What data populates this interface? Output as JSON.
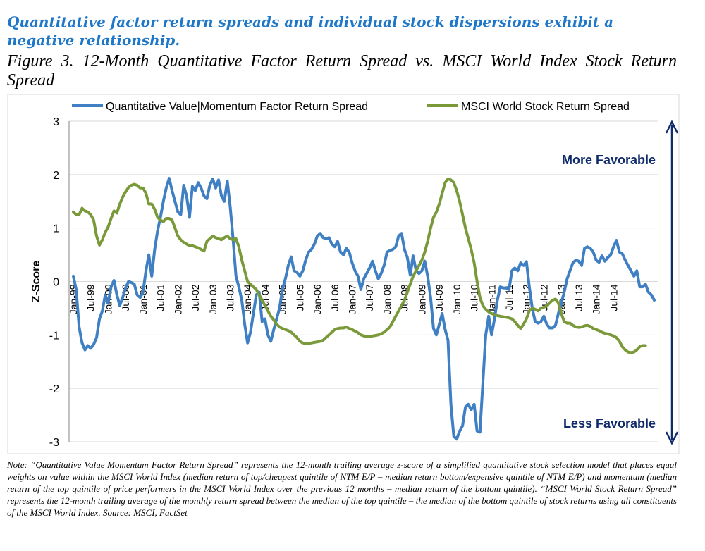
{
  "headline": "Quantitative factor return spreads and individual stock dispersions exhibit a negative relationship.",
  "figure_title": "Figure 3. 12-Month Quantitative Factor Return Spread vs. MSCI World Index Stock Return Spread",
  "note": "Note: “Quantitative Value|Momentum Factor Return Spread” represents the 12-month trailing average z-score of a simplified quantitative stock selection model that places equal weights on value within the MSCI World Index (median return of top/cheapest quintile of NTM E/P – median return bottom/expensive quintile of NTM E/P) and momentum (median return of the top quintile of price performers in the MSCI World Index over the previous 12 months – median return of the bottom quintile).  “MSCI World Stock Return Spread” represents the 12-month trailing average of the monthly return spread between the median of the top quintile – the median of the bottom quintile of stock returns using all constituents of the MSCI World Index. Source: MSCI, FactSet",
  "colors": {
    "series1": "#3f7fc3",
    "series2": "#7a9a3a",
    "arrow": "#0f2b6b",
    "grid": "#d9d9d9",
    "headline": "#1f77c8"
  },
  "chart_data": {
    "type": "line",
    "title": "",
    "xlabel": "",
    "ylabel": "Z-Score",
    "ylim": [
      -3,
      3
    ],
    "y_ticks": [
      3,
      2,
      1,
      0,
      -1,
      -2,
      -3
    ],
    "grid": true,
    "legend_position": "top",
    "x_start": "Jan-99",
    "x_frequency": "monthly",
    "x_tick_labels": [
      "Jan-99",
      "Jul-99",
      "Jan-00",
      "Jul-00",
      "Jan-01",
      "Jul-01",
      "Jan-02",
      "Jul-02",
      "Jan-03",
      "Jul-03",
      "Jan-04",
      "Jul-04",
      "Jan-05",
      "Jul-05",
      "Jan-06",
      "Jul-06",
      "Jan-07",
      "Jul-07",
      "Jan-08",
      "Jul-08",
      "Jan-09",
      "Jul-09",
      "Jan-10",
      "Jul-10",
      "Jan-11",
      "Jul-11",
      "Jan-12",
      "Jul-12",
      "Jan-13",
      "Jul-13",
      "Jan-14",
      "Jul-14"
    ],
    "annotations": {
      "top": "More Favorable",
      "bottom": "Less Favorable"
    },
    "series": [
      {
        "name": "Quantitative Value|Momentum Factor Return Spread",
        "values": [
          0.1,
          -0.15,
          -0.85,
          -1.15,
          -1.28,
          -1.2,
          -1.25,
          -1.18,
          -1.05,
          -0.7,
          -0.55,
          -0.25,
          -0.4,
          -0.1,
          0.02,
          -0.25,
          -0.45,
          -0.3,
          -0.12,
          0.0,
          -0.02,
          -0.05,
          -0.25,
          -0.3,
          -0.2,
          0.2,
          0.5,
          0.1,
          0.6,
          0.95,
          1.2,
          1.5,
          1.75,
          1.93,
          1.7,
          1.5,
          1.3,
          1.25,
          1.8,
          1.6,
          1.2,
          1.78,
          1.7,
          1.85,
          1.75,
          1.6,
          1.55,
          1.8,
          1.92,
          1.75,
          1.9,
          1.6,
          1.5,
          1.88,
          1.4,
          0.8,
          0.1,
          -0.1,
          -0.35,
          -0.8,
          -1.15,
          -0.95,
          -0.6,
          -0.25,
          -0.2,
          -0.75,
          -0.7,
          -1.0,
          -1.12,
          -0.9,
          -0.7,
          -0.5,
          -0.15,
          0.05,
          0.3,
          0.46,
          0.2,
          0.17,
          0.1,
          0.2,
          0.4,
          0.55,
          0.6,
          0.7,
          0.85,
          0.9,
          0.82,
          0.8,
          0.82,
          0.7,
          0.65,
          0.75,
          0.55,
          0.5,
          0.62,
          0.55,
          0.35,
          0.2,
          0.1,
          -0.15,
          0.05,
          0.15,
          0.25,
          0.38,
          0.2,
          0.05,
          0.15,
          0.3,
          0.55,
          0.58,
          0.6,
          0.65,
          0.85,
          0.9,
          0.6,
          0.45,
          0.12,
          0.48,
          0.2,
          0.15,
          0.2,
          0.38,
          0.1,
          -0.3,
          -0.88,
          -1.0,
          -0.8,
          -0.6,
          -0.9,
          -1.1,
          -2.3,
          -2.9,
          -2.95,
          -2.8,
          -2.7,
          -2.35,
          -2.3,
          -2.4,
          -2.3,
          -2.8,
          -2.82,
          -1.9,
          -1.0,
          -0.65,
          -1.0,
          -0.7,
          -0.35,
          -0.1,
          -0.12,
          -0.12,
          -0.15,
          0.2,
          0.25,
          0.2,
          0.35,
          0.3,
          0.37,
          -0.1,
          -0.5,
          -0.75,
          -0.78,
          -0.75,
          -0.65,
          -0.8,
          -0.87,
          -0.87,
          -0.82,
          -0.6,
          -0.4,
          -0.2,
          0.05,
          0.2,
          0.35,
          0.4,
          0.38,
          0.3,
          0.62,
          0.65,
          0.62,
          0.55,
          0.4,
          0.36,
          0.48,
          0.38,
          0.45,
          0.5,
          0.65,
          0.77,
          0.55,
          0.52,
          0.4,
          0.3,
          0.2,
          0.1,
          0.2,
          -0.1,
          -0.1,
          -0.05,
          -0.2,
          -0.25,
          -0.35
        ]
      },
      {
        "name": "MSCI World Stock Return Spread",
        "values": [
          1.3,
          1.25,
          1.25,
          1.37,
          1.32,
          1.3,
          1.25,
          1.15,
          0.85,
          0.68,
          0.78,
          0.92,
          1.02,
          1.18,
          1.32,
          1.28,
          1.45,
          1.58,
          1.68,
          1.76,
          1.8,
          1.82,
          1.8,
          1.75,
          1.75,
          1.65,
          1.45,
          1.45,
          1.35,
          1.2,
          1.15,
          1.12,
          1.18,
          1.18,
          1.15,
          1.0,
          0.85,
          0.78,
          0.73,
          0.7,
          0.67,
          0.67,
          0.65,
          0.63,
          0.6,
          0.57,
          0.75,
          0.8,
          0.85,
          0.82,
          0.8,
          0.78,
          0.82,
          0.85,
          0.8,
          0.78,
          0.8,
          0.65,
          0.4,
          0.2,
          0.0,
          -0.05,
          -0.1,
          -0.15,
          -0.25,
          -0.35,
          -0.45,
          -0.55,
          -0.65,
          -0.72,
          -0.8,
          -0.85,
          -0.88,
          -0.9,
          -0.92,
          -0.95,
          -1.0,
          -1.05,
          -1.12,
          -1.15,
          -1.16,
          -1.16,
          -1.15,
          -1.14,
          -1.13,
          -1.12,
          -1.1,
          -1.05,
          -1.0,
          -0.95,
          -0.9,
          -0.88,
          -0.87,
          -0.87,
          -0.85,
          -0.88,
          -0.9,
          -0.93,
          -0.96,
          -1.0,
          -1.02,
          -1.03,
          -1.03,
          -1.02,
          -1.01,
          -1.0,
          -0.98,
          -0.95,
          -0.9,
          -0.85,
          -0.75,
          -0.65,
          -0.55,
          -0.45,
          -0.35,
          -0.2,
          -0.05,
          0.1,
          0.2,
          0.3,
          0.4,
          0.55,
          0.75,
          1.0,
          1.2,
          1.3,
          1.45,
          1.65,
          1.85,
          1.92,
          1.9,
          1.85,
          1.7,
          1.5,
          1.25,
          1.0,
          0.8,
          0.6,
          0.35,
          0.0,
          -0.3,
          -0.45,
          -0.52,
          -0.57,
          -0.6,
          -0.62,
          -0.64,
          -0.65,
          -0.66,
          -0.67,
          -0.68,
          -0.7,
          -0.75,
          -0.82,
          -0.88,
          -0.8,
          -0.7,
          -0.55,
          -0.5,
          -0.52,
          -0.55,
          -0.5,
          -0.48,
          -0.46,
          -0.4,
          -0.35,
          -0.33,
          -0.4,
          -0.6,
          -0.75,
          -0.78,
          -0.78,
          -0.82,
          -0.85,
          -0.86,
          -0.85,
          -0.83,
          -0.82,
          -0.84,
          -0.88,
          -0.9,
          -0.92,
          -0.95,
          -0.97,
          -0.98,
          -1.0,
          -1.02,
          -1.05,
          -1.12,
          -1.22,
          -1.28,
          -1.32,
          -1.33,
          -1.32,
          -1.28,
          -1.22,
          -1.2,
          -1.2
        ]
      }
    ]
  }
}
